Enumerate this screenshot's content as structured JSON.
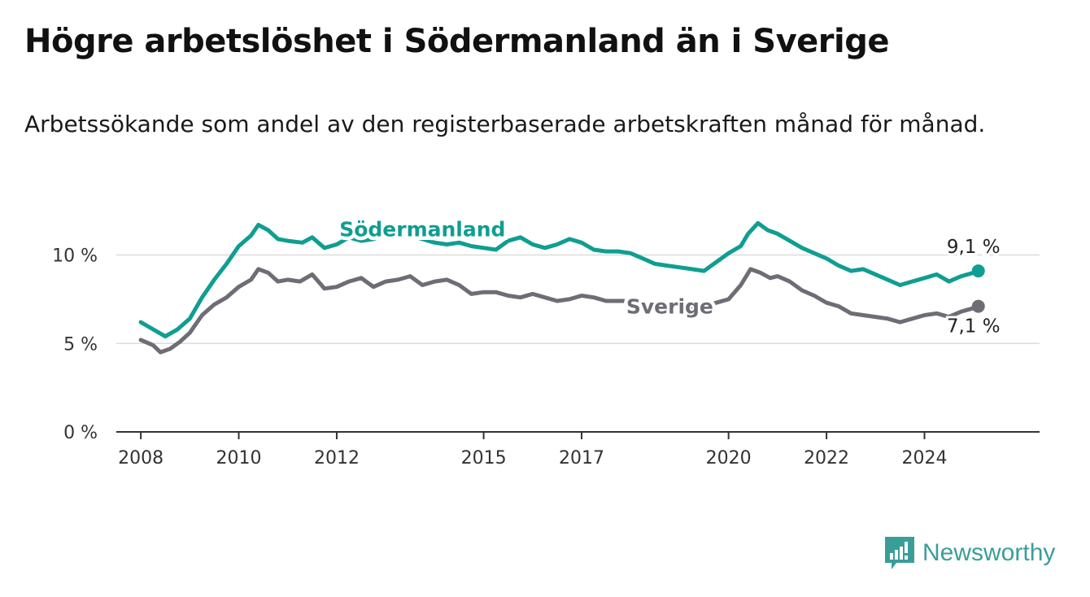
{
  "header": {
    "title": "Högre arbetslöshet i Södermanland än i Sverige",
    "subtitle": "Arbetssökande som andel av den registerbaserade arbetskraften månad för månad."
  },
  "brand": {
    "name": "Newsworthy",
    "color": "#3a9e98",
    "icon": "newsworthy-logo-icon"
  },
  "chart_data": {
    "type": "line",
    "title": "Högre arbetslöshet i Södermanland än i Sverige",
    "subtitle": "Arbetssökande som andel av den registerbaserade arbetskraften månad för månad.",
    "xlabel": "",
    "ylabel": "",
    "ylim": [
      0,
      12
    ],
    "xlim": [
      2007.5,
      2026.35
    ],
    "y_ticks": [
      {
        "value": 0,
        "label": "0 %"
      },
      {
        "value": 5,
        "label": "5 %"
      },
      {
        "value": 10,
        "label": "10 %"
      }
    ],
    "x_ticks": [
      {
        "value": 2008,
        "label": "2008"
      },
      {
        "value": 2010,
        "label": "2010"
      },
      {
        "value": 2012,
        "label": "2012"
      },
      {
        "value": 2015,
        "label": "2015"
      },
      {
        "value": 2017,
        "label": "2017"
      },
      {
        "value": 2020,
        "label": "2020"
      },
      {
        "value": 2022,
        "label": "2022"
      },
      {
        "value": 2024,
        "label": "2024"
      }
    ],
    "grid": "horizontal",
    "series": [
      {
        "name": "Södermanland",
        "color": "#0f9e91",
        "end_label": "9,1 %",
        "points": [
          [
            2008.0,
            6.2
          ],
          [
            2008.25,
            5.8
          ],
          [
            2008.5,
            5.4
          ],
          [
            2008.75,
            5.8
          ],
          [
            2009.0,
            6.4
          ],
          [
            2009.25,
            7.6
          ],
          [
            2009.5,
            8.6
          ],
          [
            2009.75,
            9.5
          ],
          [
            2010.0,
            10.5
          ],
          [
            2010.25,
            11.1
          ],
          [
            2010.4,
            11.7
          ],
          [
            2010.6,
            11.4
          ],
          [
            2010.8,
            10.9
          ],
          [
            2011.0,
            10.8
          ],
          [
            2011.3,
            10.7
          ],
          [
            2011.5,
            11.0
          ],
          [
            2011.75,
            10.4
          ],
          [
            2012.0,
            10.6
          ],
          [
            2012.25,
            11.0
          ],
          [
            2012.5,
            10.8
          ],
          [
            2012.75,
            10.9
          ],
          [
            2013.0,
            11.2
          ],
          [
            2013.25,
            11.4
          ],
          [
            2013.5,
            11.1
          ],
          [
            2013.75,
            10.9
          ],
          [
            2014.0,
            10.7
          ],
          [
            2014.25,
            10.6
          ],
          [
            2014.5,
            10.7
          ],
          [
            2014.75,
            10.5
          ],
          [
            2015.0,
            10.4
          ],
          [
            2015.25,
            10.3
          ],
          [
            2015.5,
            10.8
          ],
          [
            2015.75,
            11.0
          ],
          [
            2016.0,
            10.6
          ],
          [
            2016.25,
            10.4
          ],
          [
            2016.5,
            10.6
          ],
          [
            2016.75,
            10.9
          ],
          [
            2017.0,
            10.7
          ],
          [
            2017.25,
            10.3
          ],
          [
            2017.5,
            10.2
          ],
          [
            2017.75,
            10.2
          ],
          [
            2018.0,
            10.1
          ],
          [
            2018.25,
            9.8
          ],
          [
            2018.5,
            9.5
          ],
          [
            2018.75,
            9.4
          ],
          [
            2019.0,
            9.3
          ],
          [
            2019.25,
            9.2
          ],
          [
            2019.5,
            9.1
          ],
          [
            2019.75,
            9.6
          ],
          [
            2020.0,
            10.1
          ],
          [
            2020.25,
            10.5
          ],
          [
            2020.4,
            11.2
          ],
          [
            2020.6,
            11.8
          ],
          [
            2020.8,
            11.4
          ],
          [
            2021.0,
            11.2
          ],
          [
            2021.25,
            10.8
          ],
          [
            2021.5,
            10.4
          ],
          [
            2021.75,
            10.1
          ],
          [
            2022.0,
            9.8
          ],
          [
            2022.25,
            9.4
          ],
          [
            2022.5,
            9.1
          ],
          [
            2022.75,
            9.2
          ],
          [
            2023.0,
            8.9
          ],
          [
            2023.25,
            8.6
          ],
          [
            2023.5,
            8.3
          ],
          [
            2023.75,
            8.5
          ],
          [
            2024.0,
            8.7
          ],
          [
            2024.25,
            8.9
          ],
          [
            2024.5,
            8.5
          ],
          [
            2024.75,
            8.8
          ],
          [
            2025.0,
            9.0
          ],
          [
            2025.1,
            9.1
          ]
        ]
      },
      {
        "name": "Sverige",
        "color": "#6e6d76",
        "end_label": "7,1 %",
        "points": [
          [
            2008.0,
            5.2
          ],
          [
            2008.25,
            4.9
          ],
          [
            2008.4,
            4.5
          ],
          [
            2008.6,
            4.7
          ],
          [
            2008.8,
            5.1
          ],
          [
            2009.0,
            5.6
          ],
          [
            2009.25,
            6.6
          ],
          [
            2009.5,
            7.2
          ],
          [
            2009.75,
            7.6
          ],
          [
            2010.0,
            8.2
          ],
          [
            2010.25,
            8.6
          ],
          [
            2010.4,
            9.2
          ],
          [
            2010.6,
            9.0
          ],
          [
            2010.8,
            8.5
          ],
          [
            2011.0,
            8.6
          ],
          [
            2011.25,
            8.5
          ],
          [
            2011.5,
            8.9
          ],
          [
            2011.75,
            8.1
          ],
          [
            2012.0,
            8.2
          ],
          [
            2012.25,
            8.5
          ],
          [
            2012.5,
            8.7
          ],
          [
            2012.75,
            8.2
          ],
          [
            2013.0,
            8.5
          ],
          [
            2013.25,
            8.6
          ],
          [
            2013.5,
            8.8
          ],
          [
            2013.75,
            8.3
          ],
          [
            2014.0,
            8.5
          ],
          [
            2014.25,
            8.6
          ],
          [
            2014.5,
            8.3
          ],
          [
            2014.75,
            7.8
          ],
          [
            2015.0,
            7.9
          ],
          [
            2015.25,
            7.9
          ],
          [
            2015.5,
            7.7
          ],
          [
            2015.75,
            7.6
          ],
          [
            2016.0,
            7.8
          ],
          [
            2016.25,
            7.6
          ],
          [
            2016.5,
            7.4
          ],
          [
            2016.75,
            7.5
          ],
          [
            2017.0,
            7.7
          ],
          [
            2017.25,
            7.6
          ],
          [
            2017.5,
            7.4
          ],
          [
            2017.75,
            7.4
          ],
          [
            2018.0,
            7.4
          ],
          [
            2018.25,
            7.2
          ],
          [
            2018.5,
            7.0
          ],
          [
            2018.75,
            7.0
          ],
          [
            2019.0,
            7.0
          ],
          [
            2019.25,
            7.1
          ],
          [
            2019.5,
            7.1
          ],
          [
            2019.75,
            7.3
          ],
          [
            2020.0,
            7.5
          ],
          [
            2020.25,
            8.3
          ],
          [
            2020.45,
            9.2
          ],
          [
            2020.65,
            9.0
          ],
          [
            2020.85,
            8.7
          ],
          [
            2021.0,
            8.8
          ],
          [
            2021.25,
            8.5
          ],
          [
            2021.5,
            8.0
          ],
          [
            2021.75,
            7.7
          ],
          [
            2022.0,
            7.3
          ],
          [
            2022.25,
            7.1
          ],
          [
            2022.5,
            6.7
          ],
          [
            2022.75,
            6.6
          ],
          [
            2023.0,
            6.5
          ],
          [
            2023.25,
            6.4
          ],
          [
            2023.5,
            6.2
          ],
          [
            2023.75,
            6.4
          ],
          [
            2024.0,
            6.6
          ],
          [
            2024.25,
            6.7
          ],
          [
            2024.5,
            6.5
          ],
          [
            2024.75,
            6.8
          ],
          [
            2025.0,
            7.0
          ],
          [
            2025.1,
            7.1
          ]
        ]
      }
    ]
  }
}
